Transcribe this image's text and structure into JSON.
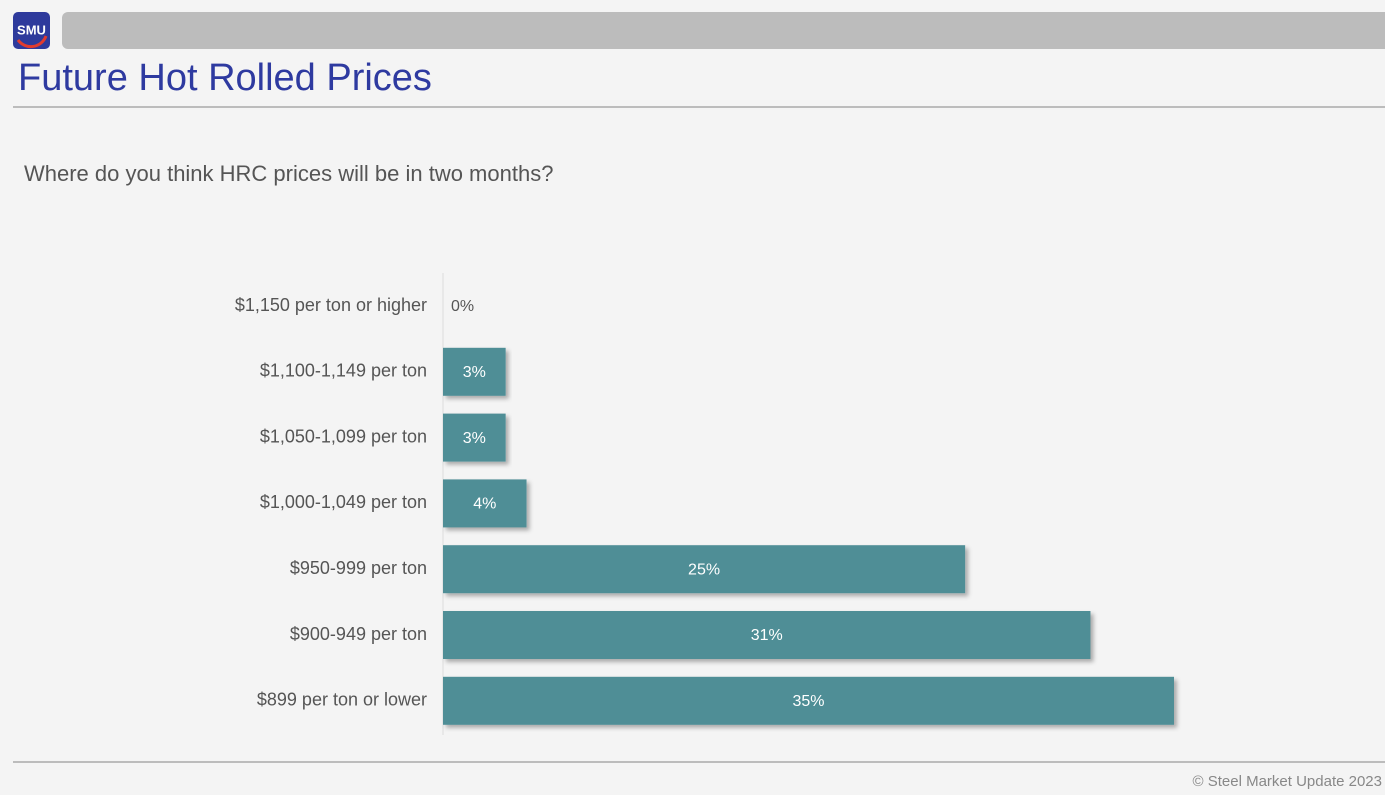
{
  "header": {
    "logo": "SMU",
    "title": "Future Hot Rolled Prices"
  },
  "chart_data": {
    "type": "bar",
    "orientation": "horizontal",
    "title": "Where do you think HRC prices will be in two months?",
    "categories": [
      "$1,150 per ton or higher",
      "$1,100-1,149 per ton",
      "$1,050-1,099 per ton",
      "$1,000-1,049 per ton",
      "$950-999 per ton",
      "$900-949 per ton",
      "$899 per ton or lower"
    ],
    "values": [
      0,
      3,
      3,
      4,
      25,
      31,
      35
    ],
    "value_labels": [
      "0%",
      "3%",
      "3%",
      "4%",
      "25%",
      "31%",
      "35%"
    ],
    "color": "#508e96"
  },
  "footer": {
    "copyright": "© Steel Market Update 2023"
  }
}
